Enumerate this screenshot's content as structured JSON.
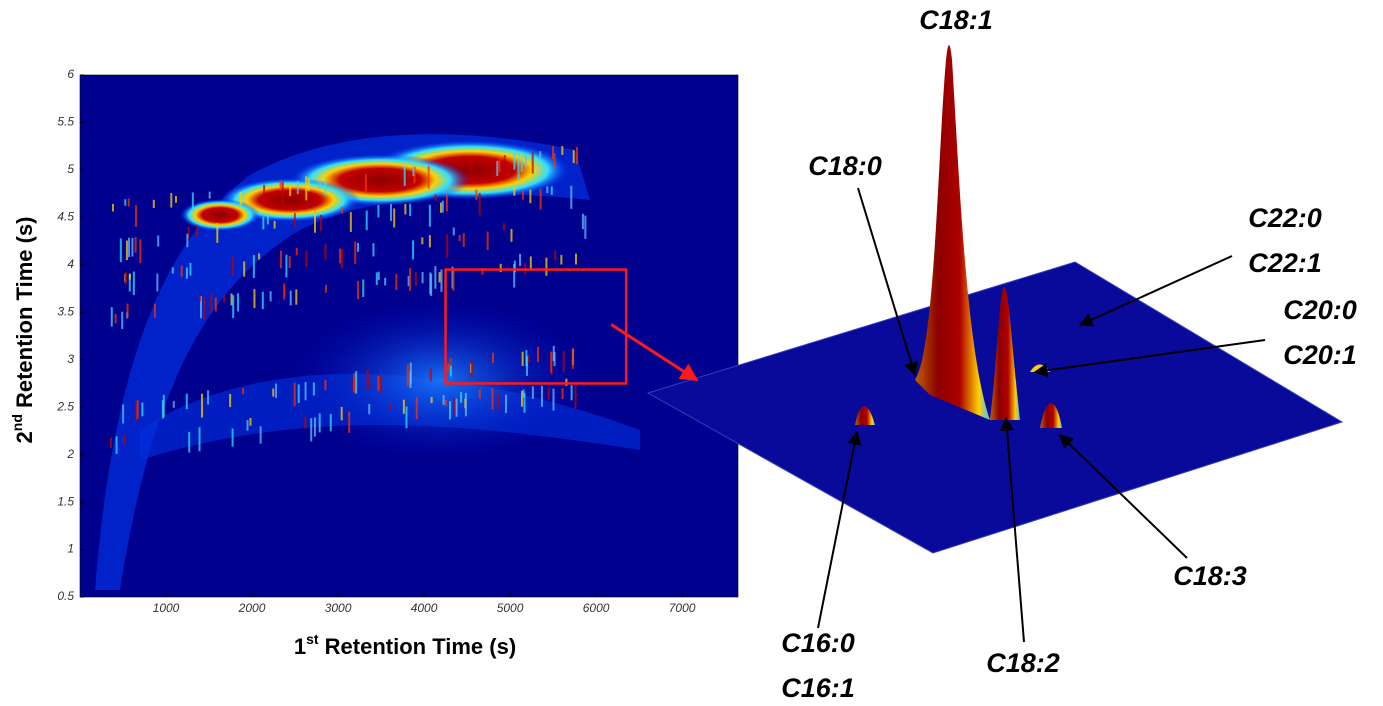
{
  "chart_data": {
    "type": "heatmap",
    "x_label": [
      "1",
      "st",
      " Retention Time (s)"
    ],
    "y_label": [
      "2",
      "nd",
      " Retention Time (s)"
    ],
    "xlim": [
      0,
      7650
    ],
    "ylim": [
      0.5,
      6
    ],
    "xticks": [
      1000,
      2000,
      3000,
      4000,
      5000,
      6000,
      7000
    ],
    "yticks": [
      0.5,
      1,
      1.5,
      2,
      2.5,
      3,
      3.5,
      4,
      4.5,
      5,
      5.5,
      6
    ],
    "zoom_box": {
      "xlim": [
        4250,
        6350
      ],
      "ylim": [
        2.75,
        3.95
      ],
      "color": "#ff1a1a"
    },
    "annotations": [
      {
        "lines": [
          "C18:1"
        ]
      },
      {
        "lines": [
          "C18:0"
        ]
      },
      {
        "lines": [
          "C22:0",
          "C22:1"
        ]
      },
      {
        "lines": [
          "C20:0",
          "C20:1"
        ]
      },
      {
        "lines": [
          "C18:3"
        ]
      },
      {
        "lines": [
          "C18:2"
        ]
      },
      {
        "lines": [
          "C16:0",
          "C16:1"
        ]
      }
    ]
  }
}
